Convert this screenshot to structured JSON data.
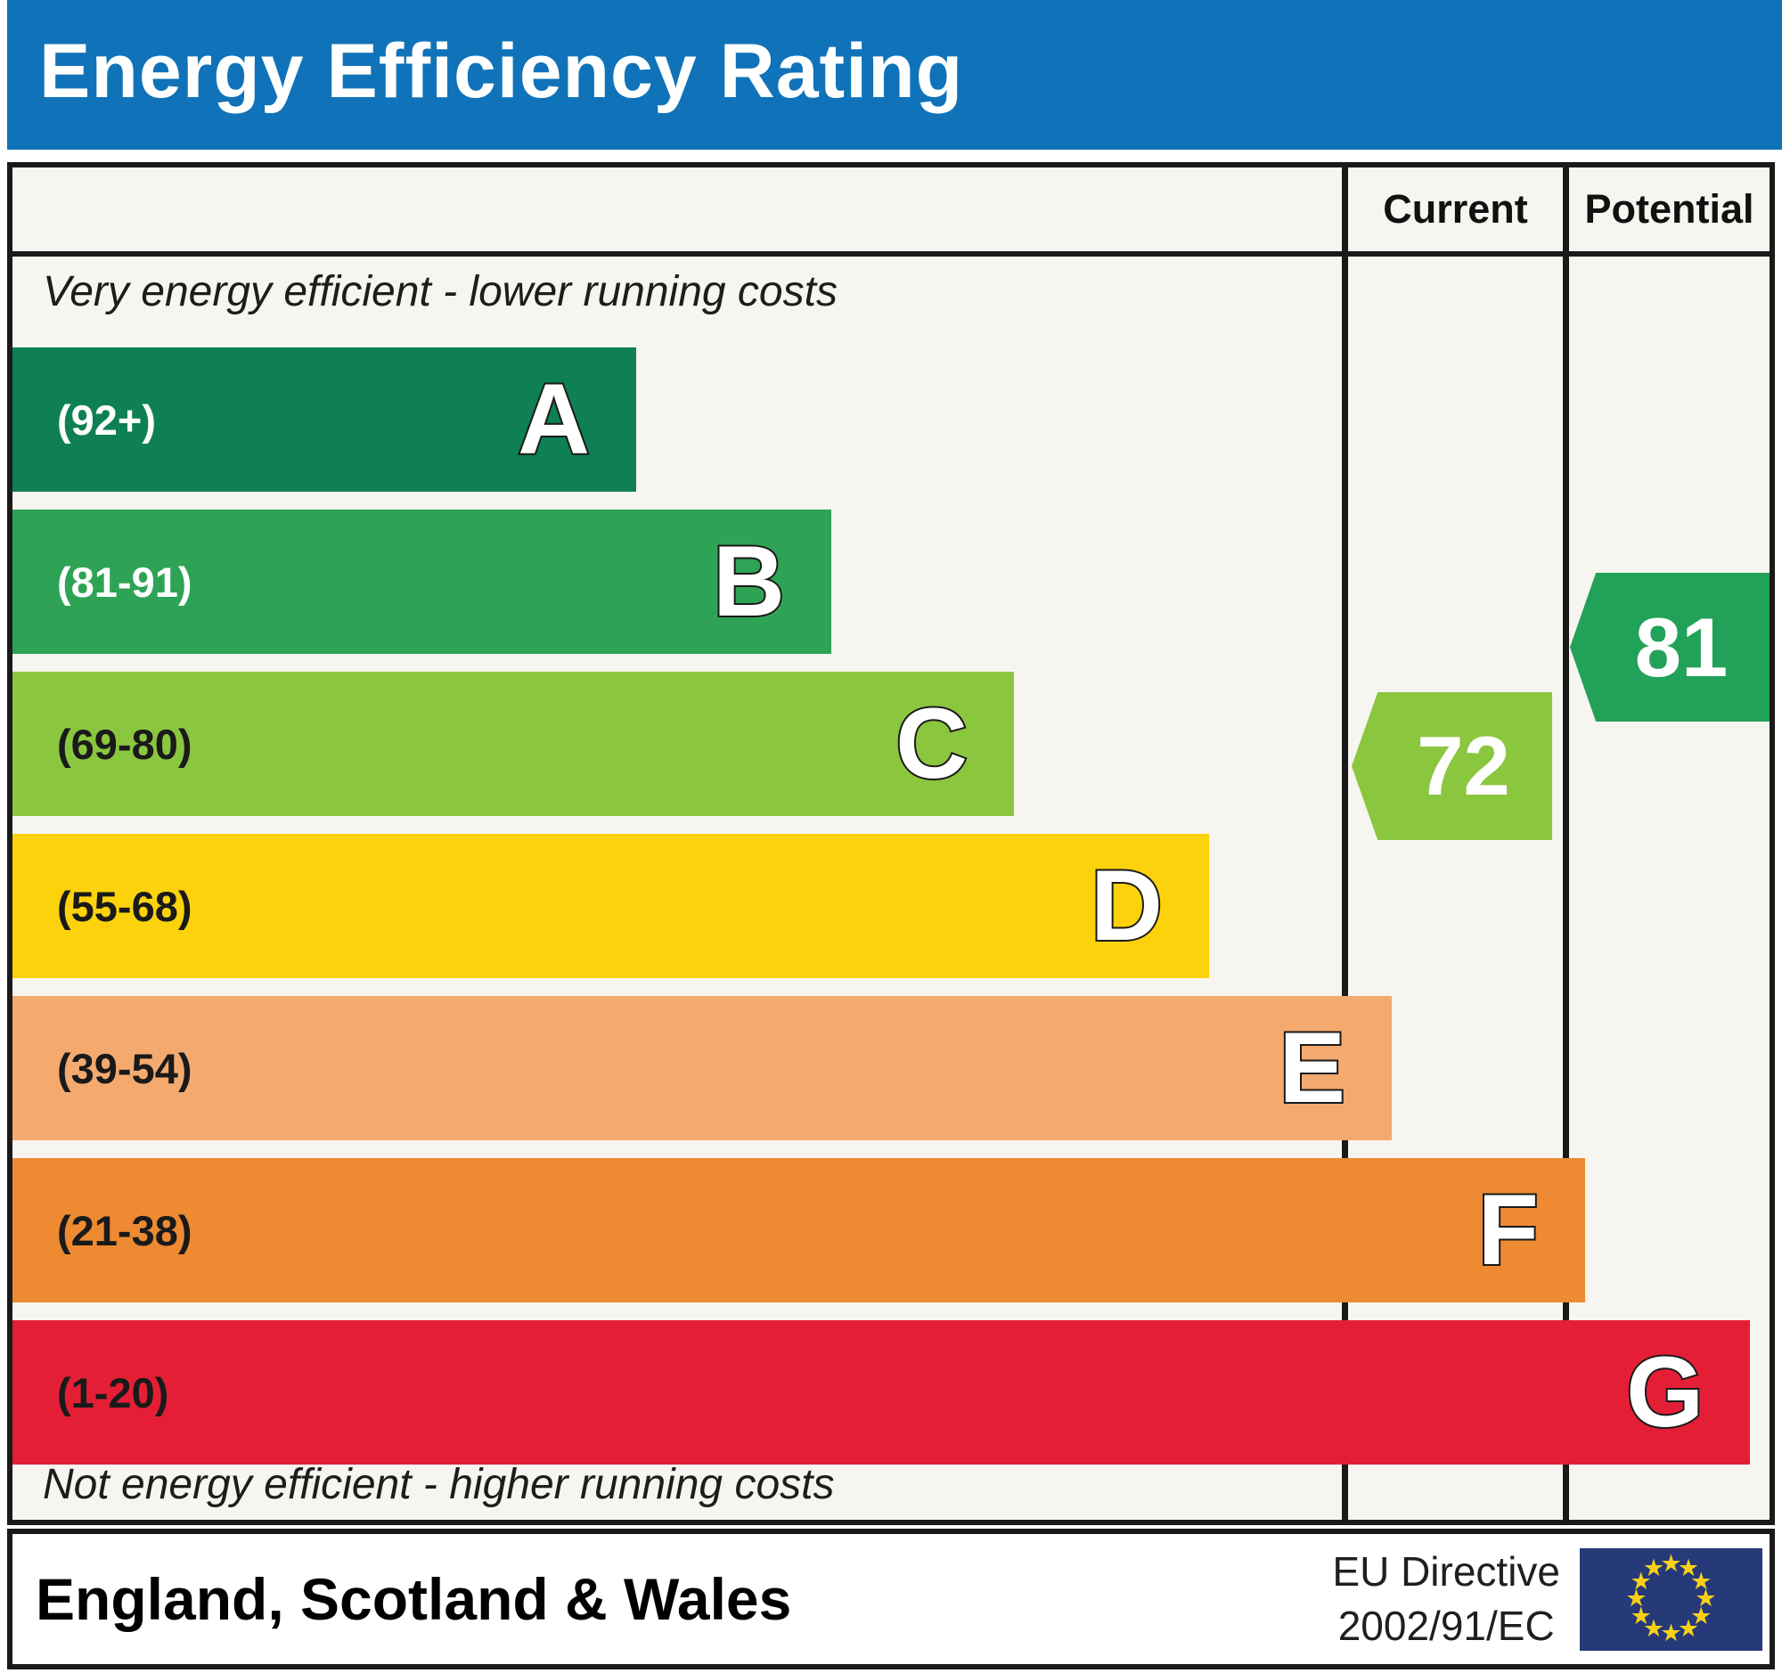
{
  "title": "Energy Efficiency Rating",
  "columns": {
    "current": "Current",
    "potential": "Potential"
  },
  "captions": {
    "top": "Very energy efficient - lower running costs",
    "bottom": "Not energy efficient - higher running costs"
  },
  "footer": {
    "region": "England, Scotland & Wales",
    "directive_line1": "EU Directive",
    "directive_line2": "2002/91/EC"
  },
  "colors": {
    "title_bar": "#1073b9",
    "title_text": "#ffffff",
    "border": "#1a1a1a",
    "table_background": "#f6f5f0",
    "eu_flag_blue": "#263a7a",
    "eu_flag_stars": "#f8d018"
  },
  "chart_data": {
    "type": "bar",
    "title": "Energy Efficiency Rating",
    "categories": [
      "A",
      "B",
      "C",
      "D",
      "E",
      "F",
      "G"
    ],
    "scale_range": [
      1,
      100
    ],
    "bands": [
      {
        "letter": "A",
        "range_label": "(92+)",
        "range": [
          92,
          100
        ],
        "color": "#0e8054",
        "range_label_color": "#ffffff",
        "width_pct": 35.5
      },
      {
        "letter": "B",
        "range_label": "(81-91)",
        "range": [
          81,
          91
        ],
        "color": "#2ea355",
        "range_label_color": "#ffffff",
        "width_pct": 46.6
      },
      {
        "letter": "C",
        "range_label": "(69-80)",
        "range": [
          69,
          80
        ],
        "color": "#8bc63f",
        "range_label_color": "#1a1a1a",
        "width_pct": 57.0
      },
      {
        "letter": "D",
        "range_label": "(55-68)",
        "range": [
          55,
          68
        ],
        "color": "#fbd20b",
        "range_label_color": "#1a1a1a",
        "width_pct": 68.1
      },
      {
        "letter": "E",
        "range_label": "(39-54)",
        "range": [
          39,
          54
        ],
        "color": "#f4aa6f",
        "range_label_color": "#1a1a1a",
        "width_pct": 78.5
      },
      {
        "letter": "F",
        "range_label": "(21-38)",
        "range": [
          21,
          38
        ],
        "color": "#ee8a31",
        "range_label_color": "#1a1a1a",
        "width_pct": 89.5
      },
      {
        "letter": "G",
        "range_label": "(1-20)",
        "range": [
          1,
          20
        ],
        "color": "#e41f35",
        "range_label_color": "#1a1a1a",
        "width_pct": 98.9
      }
    ],
    "current": {
      "value": 72,
      "band": "C",
      "color": "#8bc63f"
    },
    "potential": {
      "value": 81,
      "band": "B",
      "color": "#22a158"
    }
  }
}
